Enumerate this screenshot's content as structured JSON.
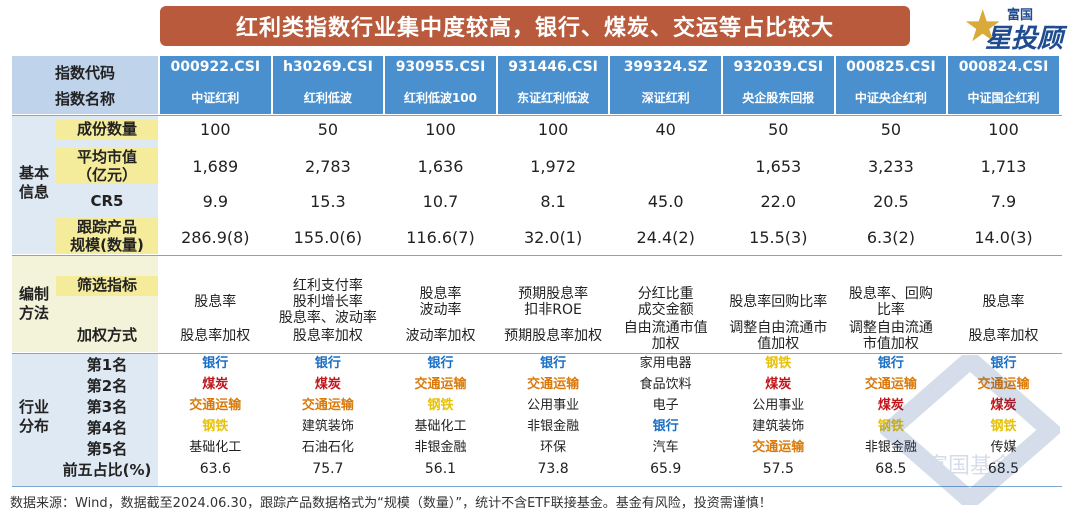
{
  "title": "红利类指数行业集中度较高，银行、煤炭、交运等占比较大",
  "logo": {
    "top": "富国",
    "bottom": "星投顾"
  },
  "watermark": "富国基金",
  "header": {
    "code_label": "指数代码",
    "name_label": "指数名称"
  },
  "columns": [
    {
      "code": "000922.CSI",
      "name": "中证红利"
    },
    {
      "code": "h30269.CSI",
      "name": "红利低波"
    },
    {
      "code": "930955.CSI",
      "name": "红利低波100"
    },
    {
      "code": "931446.CSI",
      "name": "东证红利低波"
    },
    {
      "code": "399324.SZ",
      "name": "深证红利"
    },
    {
      "code": "932039.CSI",
      "name": "央企股东回报"
    },
    {
      "code": "000825.CSI",
      "name": "中证央企红利"
    },
    {
      "code": "000824.CSI",
      "name": "中证国企红利"
    }
  ],
  "sections": {
    "basic": "基本信息",
    "method": "编制方法",
    "industry": "行业分布"
  },
  "row_labels": {
    "constituents": "成份数量",
    "avg_cap": "平均市值（亿元）",
    "cr5": "CR5",
    "tracking": "跟踪产品规模(数量)",
    "screen": "筛选指标",
    "weight": "加权方式",
    "rank1": "第1名",
    "rank2": "第2名",
    "rank3": "第3名",
    "rank4": "第4名",
    "rank5": "第5名",
    "top5": "前五占比(%)"
  },
  "colors": {
    "bank": "#1a6fc4",
    "coal": "#c0161c",
    "transport": "#d97a0a",
    "steel": "#e7c20a",
    "other": "#222222"
  },
  "rows": {
    "constituents": [
      "100",
      "50",
      "100",
      "100",
      "40",
      "50",
      "50",
      "100"
    ],
    "avg_cap": [
      "1,689",
      "2,783",
      "1,636",
      "1,972",
      "",
      "1,653",
      "3,233",
      "1,713"
    ],
    "cr5": [
      "9.9",
      "15.3",
      "10.7",
      "8.1",
      "45.0",
      "22.0",
      "20.5",
      "7.9"
    ],
    "tracking": [
      "286.9(8)",
      "155.0(6)",
      "116.6(7)",
      "32.0(1)",
      "24.4(2)",
      "15.5(3)",
      "6.3(2)",
      "14.0(3)"
    ],
    "screen": [
      "股息率",
      "红利支付率\n股利增长率\n股息率、波动率",
      "股息率\n波动率",
      "预期股息率\n扣非ROE",
      "分红比重\n成交金额",
      "股息率回购比率",
      "股息率、回购\n比率",
      "股息率"
    ],
    "weight": [
      "股息率加权",
      "股息率加权",
      "波动率加权",
      "预期股息率加权",
      "自由流通市值\n加权",
      "调整自由流通市\n值加权",
      "调整自由流通\n市值加权",
      "股息率加权"
    ],
    "rank1": [
      "银行",
      "银行",
      "银行",
      "银行",
      "家用电器",
      "钢铁",
      "银行",
      "银行"
    ],
    "rank2": [
      "煤炭",
      "煤炭",
      "交通运输",
      "交通运输",
      "食品饮料",
      "煤炭",
      "交通运输",
      "交通运输"
    ],
    "rank3": [
      "交通运输",
      "交通运输",
      "钢铁",
      "公用事业",
      "电子",
      "公用事业",
      "煤炭",
      "煤炭"
    ],
    "rank4": [
      "钢铁",
      "建筑装饰",
      "基础化工",
      "非银金融",
      "银行",
      "建筑装饰",
      "钢铁",
      "钢铁"
    ],
    "rank5": [
      "基础化工",
      "石油石化",
      "非银金融",
      "环保",
      "汽车",
      "交通运输",
      "非银金融",
      "传媒"
    ],
    "top5": [
      "63.6",
      "75.7",
      "56.1",
      "73.8",
      "65.9",
      "57.5",
      "68.5",
      "68.5"
    ]
  },
  "footer": "数据来源：Wind，数据截至2024.06.30，跟踪产品数据格式为“规模（数量）”，统计不含ETF联接基金。基金有风险，投资需谨慎！"
}
